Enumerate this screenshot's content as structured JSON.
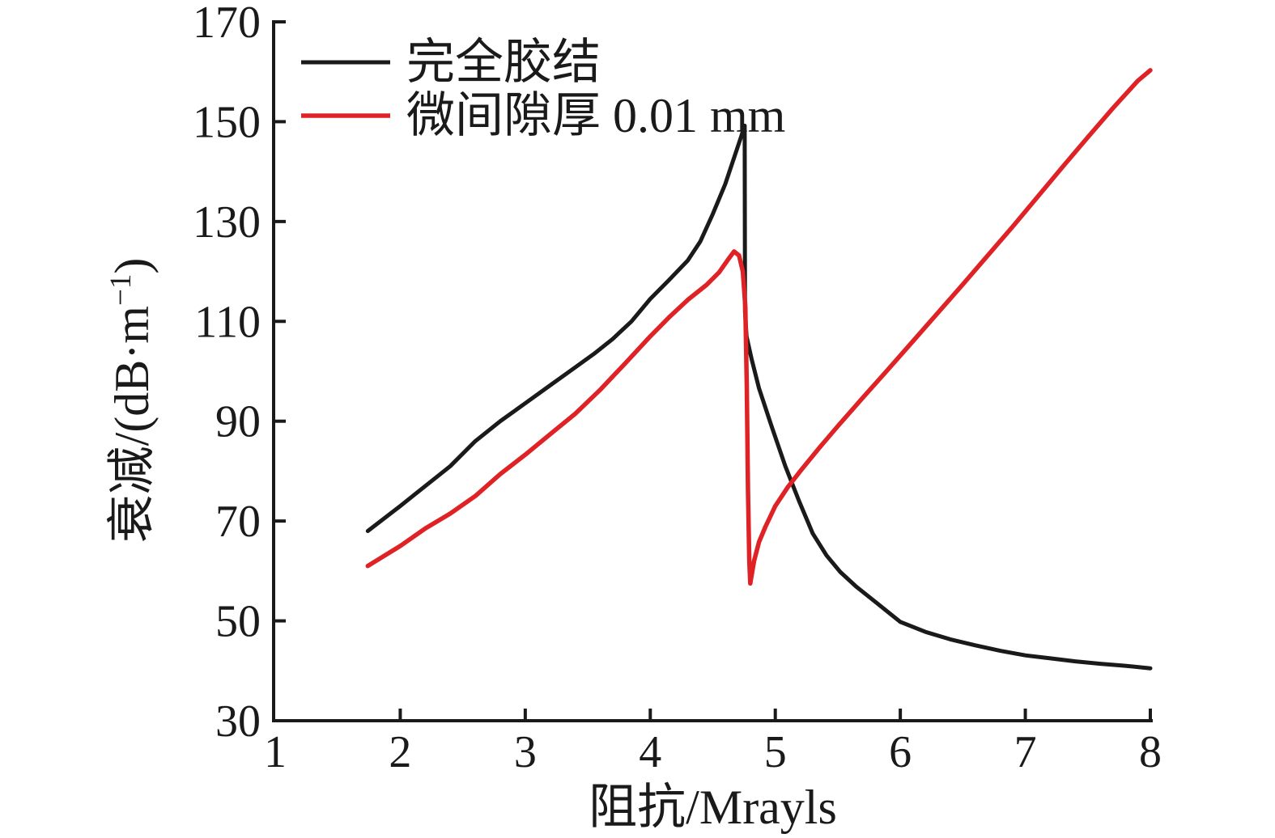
{
  "chart_data": {
    "type": "line",
    "title": "",
    "xlabel": "阻抗/Mrayls",
    "ylabel": "衰减/(dB·m⁻¹)",
    "xlim": [
      1,
      8
    ],
    "ylim": [
      30,
      170
    ],
    "xticks": [
      1,
      2,
      3,
      4,
      5,
      6,
      7,
      8
    ],
    "yticks": [
      30,
      50,
      70,
      90,
      110,
      130,
      150,
      170
    ],
    "grid": false,
    "axis_color": "#1a1a1a",
    "legend": {
      "position": "top-left-inside",
      "entries": [
        "完全胶结",
        "微间隙厚 0.01 mm"
      ]
    },
    "series": [
      {
        "name": "完全胶结",
        "color": "#1a1a1a",
        "stroke_width": 5,
        "points": [
          [
            1.74,
            68
          ],
          [
            2.0,
            73
          ],
          [
            2.2,
            77
          ],
          [
            2.4,
            81
          ],
          [
            2.6,
            86
          ],
          [
            2.8,
            90
          ],
          [
            3.0,
            93.6
          ],
          [
            3.2,
            97.2
          ],
          [
            3.4,
            100.8
          ],
          [
            3.55,
            103.5
          ],
          [
            3.7,
            106.5
          ],
          [
            3.85,
            110
          ],
          [
            4.0,
            114.5
          ],
          [
            4.15,
            118.3
          ],
          [
            4.3,
            122.2
          ],
          [
            4.4,
            126
          ],
          [
            4.5,
            131.5
          ],
          [
            4.6,
            137.5
          ],
          [
            4.68,
            143.5
          ],
          [
            4.72,
            146.5
          ],
          [
            4.755,
            149.2
          ],
          [
            4.758,
            112
          ],
          [
            4.77,
            107
          ],
          [
            4.81,
            102.5
          ],
          [
            4.87,
            96.6
          ],
          [
            4.97,
            89
          ],
          [
            5.08,
            81
          ],
          [
            5.19,
            74
          ],
          [
            5.3,
            67.5
          ],
          [
            5.41,
            63.1
          ],
          [
            5.52,
            59.8
          ],
          [
            5.65,
            56.8
          ],
          [
            5.8,
            53.8
          ],
          [
            6.0,
            49.8
          ],
          [
            6.2,
            47.8
          ],
          [
            6.4,
            46.3
          ],
          [
            6.6,
            45.1
          ],
          [
            6.8,
            44
          ],
          [
            7.0,
            43.1
          ],
          [
            7.2,
            42.5
          ],
          [
            7.4,
            41.9
          ],
          [
            7.6,
            41.4
          ],
          [
            7.8,
            41
          ],
          [
            8.0,
            40.5
          ]
        ]
      },
      {
        "name": "微间隙厚 0.01 mm",
        "color": "#de2226",
        "stroke_width": 5.5,
        "points": [
          [
            1.74,
            61
          ],
          [
            2.0,
            65
          ],
          [
            2.2,
            68.5
          ],
          [
            2.4,
            71.5
          ],
          [
            2.6,
            75
          ],
          [
            2.8,
            79.4
          ],
          [
            3.0,
            83.3
          ],
          [
            3.2,
            87.4
          ],
          [
            3.4,
            91.5
          ],
          [
            3.6,
            96.3
          ],
          [
            3.8,
            101.6
          ],
          [
            4.0,
            107
          ],
          [
            4.15,
            110.8
          ],
          [
            4.3,
            114.3
          ],
          [
            4.45,
            117.3
          ],
          [
            4.55,
            119.8
          ],
          [
            4.62,
            122.3
          ],
          [
            4.67,
            124
          ],
          [
            4.71,
            123.2
          ],
          [
            4.74,
            120
          ],
          [
            4.76,
            113
          ],
          [
            4.772,
            97
          ],
          [
            4.782,
            76
          ],
          [
            4.792,
            62
          ],
          [
            4.8,
            57.5
          ],
          [
            4.83,
            62
          ],
          [
            4.87,
            65.8
          ],
          [
            4.92,
            68.8
          ],
          [
            5.0,
            73
          ],
          [
            5.1,
            76.8
          ],
          [
            5.2,
            80
          ],
          [
            5.35,
            84.6
          ],
          [
            5.5,
            89
          ],
          [
            5.7,
            94.7
          ],
          [
            5.9,
            100.3
          ],
          [
            6.1,
            106
          ],
          [
            6.3,
            111.7
          ],
          [
            6.5,
            117.4
          ],
          [
            6.7,
            123.2
          ],
          [
            6.9,
            129
          ],
          [
            7.1,
            135
          ],
          [
            7.3,
            141
          ],
          [
            7.5,
            146.9
          ],
          [
            7.7,
            152.7
          ],
          [
            7.9,
            158.2
          ],
          [
            8.0,
            160.3
          ]
        ]
      }
    ],
    "annotations": {
      "black_peak": [
        4.75,
        149
      ],
      "red_peak": [
        4.67,
        124
      ],
      "red_minimum": [
        4.8,
        57.5
      ]
    }
  }
}
